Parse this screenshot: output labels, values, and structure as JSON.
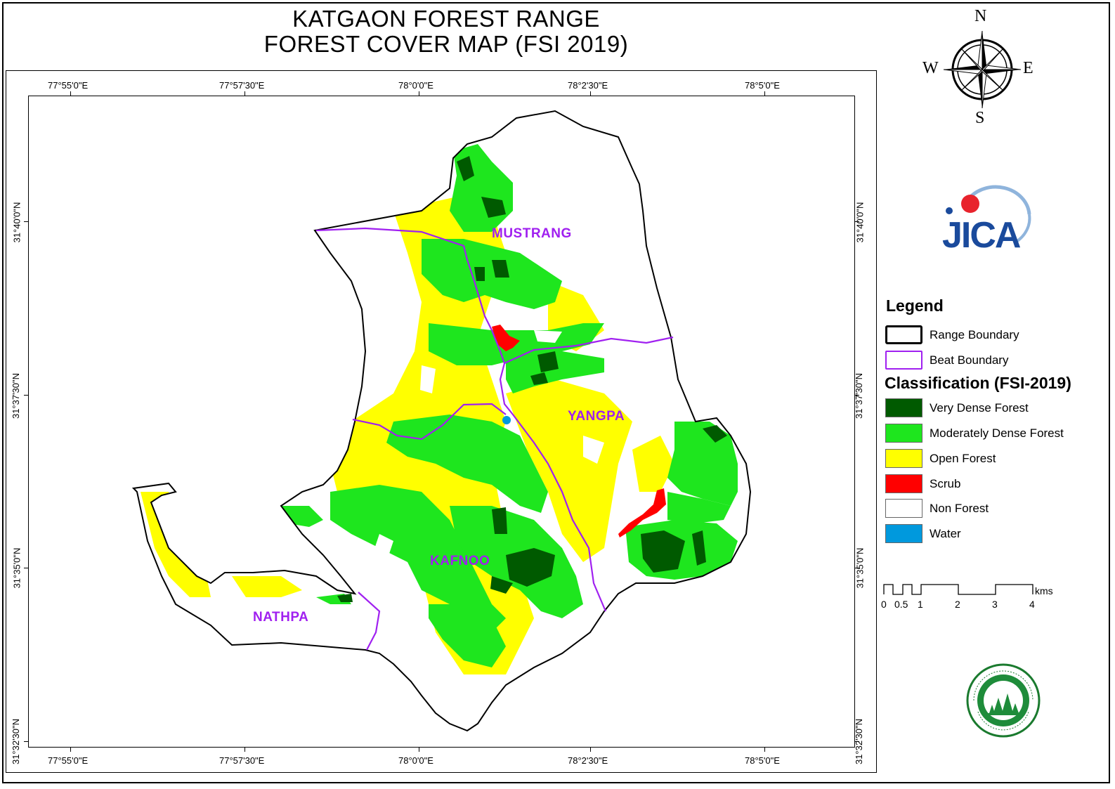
{
  "title": {
    "line1": "KATGAON FOREST RANGE",
    "line2": "FOREST COVER MAP (FSI 2019)"
  },
  "graticule": {
    "lon_labels": [
      "77°55'0\"E",
      "77°57'30\"E",
      "78°0'0\"E",
      "78°2'30\"E",
      "78°5'0\"E"
    ],
    "lat_labels": [
      "31°40'0\"N",
      "31°37'30\"N",
      "31°35'0\"N",
      "31°32'30\"N"
    ]
  },
  "beats": {
    "mustrang": "MUSTRANG",
    "yangpa": "YANGPA",
    "kafnoo": "KAFNOO",
    "nathpa": "NATHPA"
  },
  "compass": {
    "n": "N",
    "s": "S",
    "e": "E",
    "w": "W"
  },
  "logo": {
    "jica": "JICA"
  },
  "legend": {
    "title": "Legend",
    "boundaries": [
      {
        "label": "Range Boundary",
        "color": "#000000"
      },
      {
        "label": "Beat Boundary",
        "color": "#a020f0"
      }
    ],
    "classification_title": "Classification (FSI-2019)",
    "classes": [
      {
        "label": "Very Dense Forest",
        "color": "#005a00"
      },
      {
        "label": "Moderately Dense Forest",
        "color": "#1ee61e"
      },
      {
        "label": "Open Forest",
        "color": "#ffff00"
      },
      {
        "label": "Scrub",
        "color": "#ff0000"
      },
      {
        "label": "Non Forest",
        "color": "#ffffff"
      },
      {
        "label": "Water",
        "color": "#0099dd"
      }
    ]
  },
  "scale_bar": {
    "unit": "kms",
    "ticks": [
      "0",
      "0.5",
      "1",
      "2",
      "3",
      "4"
    ]
  }
}
